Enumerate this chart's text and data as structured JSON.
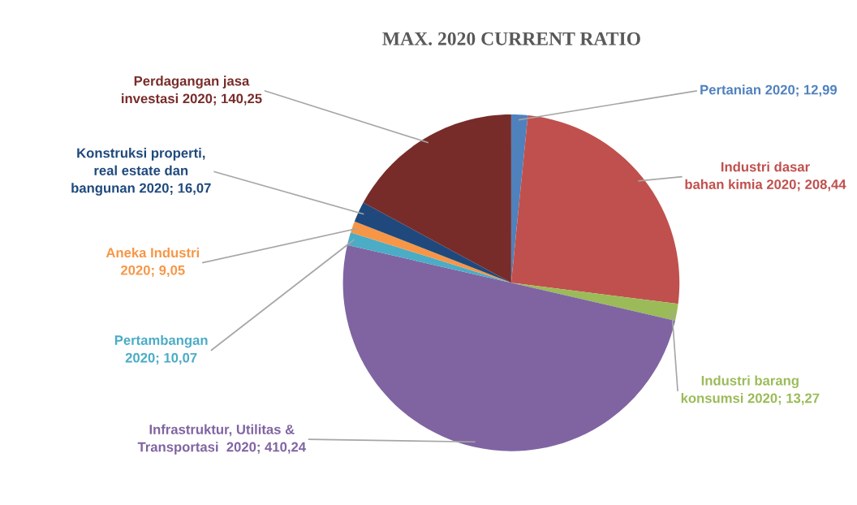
{
  "chart_data": {
    "type": "pie",
    "title": "MAX. 2020 CURRENT RATIO",
    "categories": [
      "Pertanian 2020",
      "Industri dasar\nbahan kimia 2020",
      "Industri barang\nkonsumsi 2020",
      "Infrastruktur, Utilitas &\nTransportasi  2020",
      "Pertambangan\n2020",
      "Aneka Industri\n2020",
      "Konstruksi properti,\nreal estate dan\nbangunan 2020",
      "Perdagangan jasa\ninvestasi 2020"
    ],
    "values": [
      12.99,
      208.44,
      13.27,
      410.24,
      10.07,
      9.05,
      16.07,
      140.25
    ],
    "value_labels": [
      "12,99",
      "208,44",
      "13,27",
      "410,24",
      "10,07",
      "9,05",
      "16,07",
      "140,25"
    ],
    "colors": [
      "#4f81bd",
      "#c0504d",
      "#9bbb59",
      "#8064a2",
      "#4bacc6",
      "#f79646",
      "#1f497d",
      "#772c2a"
    ],
    "legend": false
  }
}
